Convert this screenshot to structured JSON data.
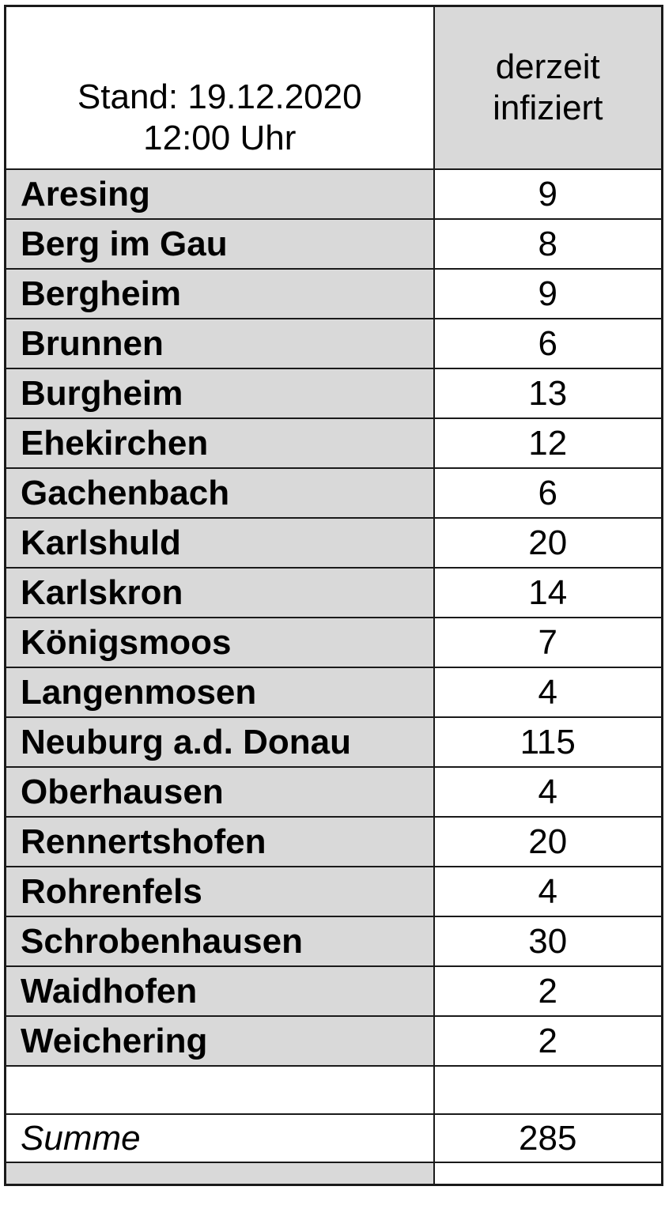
{
  "header": {
    "stand_line1": "Stand: 19.12.2020",
    "stand_line2": "12:00 Uhr",
    "infected_col_line1": "derzeit",
    "infected_col_line2": "infiziert"
  },
  "rows": [
    {
      "name": "Aresing",
      "value": "9"
    },
    {
      "name": "Berg im Gau",
      "value": "8"
    },
    {
      "name": "Bergheim",
      "value": "9"
    },
    {
      "name": "Brunnen",
      "value": "6"
    },
    {
      "name": "Burgheim",
      "value": "13"
    },
    {
      "name": "Ehekirchen",
      "value": "12"
    },
    {
      "name": "Gachenbach",
      "value": "6"
    },
    {
      "name": "Karlshuld",
      "value": "20"
    },
    {
      "name": "Karlskron",
      "value": "14"
    },
    {
      "name": "Königsmoos",
      "value": "7"
    },
    {
      "name": "Langenmosen",
      "value": "4"
    },
    {
      "name": "Neuburg a.d. Donau",
      "value": "115"
    },
    {
      "name": "Oberhausen",
      "value": "4"
    },
    {
      "name": "Rennertshofen",
      "value": "20"
    },
    {
      "name": "Rohrenfels",
      "value": "4"
    },
    {
      "name": "Schrobenhausen",
      "value": "30"
    },
    {
      "name": "Waidhofen",
      "value": "2"
    },
    {
      "name": "Weichering",
      "value": "2"
    }
  ],
  "summary": {
    "label": "Summe",
    "value": "285"
  },
  "colors": {
    "cell_gray": "#d9d9d9",
    "border": "#1a1a1a",
    "text": "#000000",
    "background": "#ffffff"
  },
  "chart_data": {
    "type": "table",
    "title": "Stand: 19.12.2020 12:00 Uhr",
    "columns": [
      "Stand: 19.12.2020 12:00 Uhr",
      "derzeit infiziert"
    ],
    "categories": [
      "Aresing",
      "Berg im Gau",
      "Bergheim",
      "Brunnen",
      "Burgheim",
      "Ehekirchen",
      "Gachenbach",
      "Karlshuld",
      "Karlskron",
      "Königsmoos",
      "Langenmosen",
      "Neuburg a.d. Donau",
      "Oberhausen",
      "Rennertshofen",
      "Rohrenfels",
      "Schrobenhausen",
      "Waidhofen",
      "Weichering"
    ],
    "values": [
      9,
      8,
      9,
      6,
      13,
      12,
      6,
      20,
      14,
      7,
      4,
      115,
      4,
      20,
      4,
      30,
      2,
      2
    ],
    "total_label": "Summe",
    "total": 285,
    "legend": "none",
    "grid": "all-cell-borders"
  }
}
